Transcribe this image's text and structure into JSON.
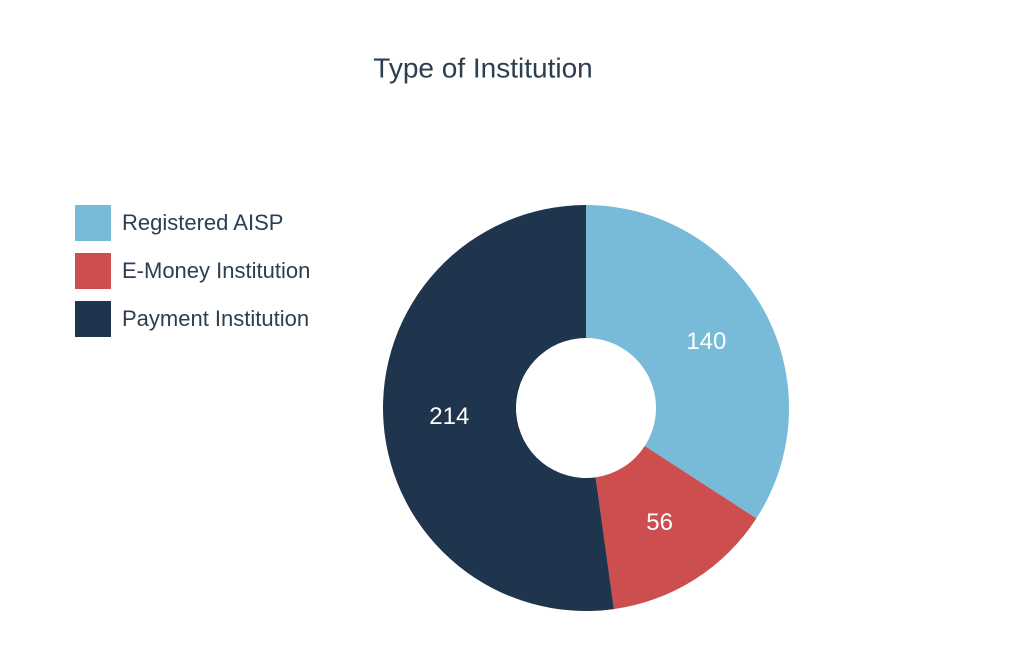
{
  "chart_data": {
    "type": "donut",
    "title": "Type of Institution",
    "categories": [
      "Registered AISP",
      "E-Money Institution",
      "Payment Institution"
    ],
    "values": [
      140,
      56,
      214
    ],
    "colors": [
      "#77bbd9",
      "#cd4e4e",
      "#1f344d"
    ],
    "legend": "left"
  }
}
